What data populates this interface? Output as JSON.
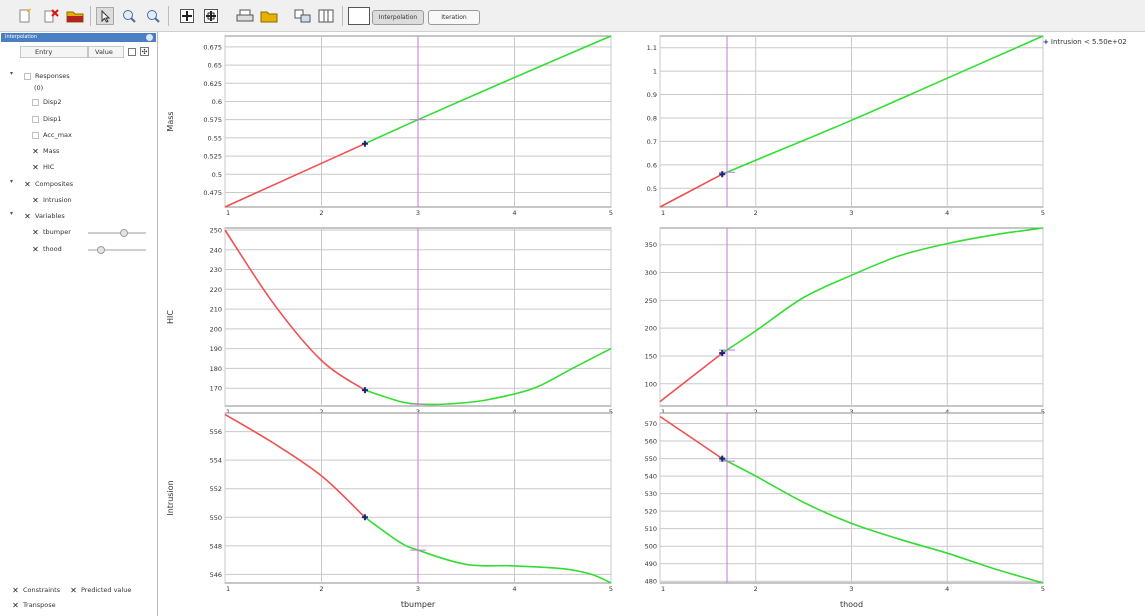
{
  "toolbar": {
    "buttons": [
      "new-file-icon",
      "delete-icon",
      "open-folder-icon",
      "select-cursor-icon",
      "zoom-in-icon",
      "zoom-out-icon",
      "fit-view-icon",
      "fit-all-icon",
      "print-icon",
      "print-folder-icon",
      "export-icon",
      "columns-icon"
    ],
    "mode_interpolation": "Interpolation",
    "mode_iteration": "Iteration"
  },
  "sidebar": {
    "title": "Interpolation",
    "col_entry": "Entry",
    "col_value": "Value",
    "responses_label": "Responses",
    "responses_count": "(0)",
    "items": [
      {
        "label": "Disp2",
        "checked": false
      },
      {
        "label": "Disp1",
        "checked": false
      },
      {
        "label": "Acc_max",
        "checked": false
      },
      {
        "label": "Mass",
        "checked": true
      },
      {
        "label": "HIC",
        "checked": true
      }
    ],
    "composites_label": "Composites",
    "composites_items": [
      {
        "label": "Intrusion",
        "checked": true
      }
    ],
    "variables_label": "Variables",
    "variables_items": [
      {
        "label": "tbumper",
        "checked": true,
        "slider": 0.62
      },
      {
        "label": "thood",
        "checked": true,
        "slider": 0.2
      }
    ],
    "opt_constraints": "Constraints",
    "opt_predicted": "Predicted value",
    "opt_transpose": "Transpose"
  },
  "legend": {
    "text": "Intrusion < 5.50e+02"
  },
  "colors": {
    "feasible": "#33dd33",
    "infeasible": "#f05050",
    "cursor": "#c27ad8",
    "point": "#1a237e"
  },
  "chart_data": [
    {
      "type": "line",
      "row": 0,
      "col": 0,
      "xlabel": "",
      "ylabel": "Mass",
      "xlim": [
        1,
        5
      ],
      "ylim": [
        0.455,
        0.69
      ],
      "xticks": [
        "1",
        "2",
        "3",
        "4",
        "5"
      ],
      "yticks": [
        0.475,
        0.5,
        0.525,
        0.55,
        0.575,
        0.6,
        0.625,
        0.65,
        0.675
      ],
      "ytick_labels": [
        "0.475",
        "0.5",
        "0.525",
        "0.55",
        "0.575",
        "0.6",
        "0.625",
        "0.65",
        "0.675"
      ],
      "x": [
        1,
        2.45,
        3,
        4,
        5
      ],
      "y": [
        0.455,
        0.542,
        0.575,
        0.633,
        0.69
      ],
      "split_x": 2.45,
      "cursor_x": 3,
      "point": [
        2.45,
        0.542
      ]
    },
    {
      "type": "line",
      "row": 0,
      "col": 1,
      "xlabel": "",
      "ylabel": "",
      "xlim": [
        1,
        5
      ],
      "ylim": [
        0.42,
        1.15
      ],
      "xticks": [
        "1",
        "2",
        "3",
        "4",
        "5"
      ],
      "yticks": [
        0.5,
        0.6,
        0.7,
        0.8,
        0.9,
        1.0,
        1.1
      ],
      "ytick_labels": [
        "0.5",
        "0.6",
        "0.7",
        "0.8",
        "0.9",
        "1",
        "1.1"
      ],
      "x": [
        1,
        1.65,
        2,
        3,
        4,
        5
      ],
      "y": [
        0.42,
        0.56,
        0.62,
        0.79,
        0.97,
        1.15
      ],
      "split_x": 1.65,
      "cursor_x": 1.7,
      "point": [
        1.65,
        0.56
      ]
    },
    {
      "type": "line",
      "row": 1,
      "col": 0,
      "xlabel": "",
      "ylabel": "HIC",
      "xlim": [
        1,
        5
      ],
      "ylim": [
        161,
        251
      ],
      "xticks": [
        "1",
        "2",
        "3",
        "4",
        "5"
      ],
      "yticks": [
        170,
        180,
        190,
        200,
        210,
        220,
        230,
        240,
        250
      ],
      "ytick_labels": [
        "170",
        "180",
        "190",
        "200",
        "210",
        "220",
        "230",
        "240",
        "250"
      ],
      "x": [
        1,
        1.5,
        2,
        2.45,
        2.8,
        3.0,
        3.3,
        3.7,
        4.2,
        4.6,
        5
      ],
      "y": [
        250,
        213,
        184,
        169,
        163.5,
        162,
        162,
        164,
        170,
        180,
        190
      ],
      "split_x": 2.45,
      "cursor_x": 3,
      "point": [
        2.45,
        169
      ]
    },
    {
      "type": "line",
      "row": 1,
      "col": 1,
      "xlabel": "",
      "ylabel": "",
      "xlim": [
        1,
        5
      ],
      "ylim": [
        60,
        380
      ],
      "xticks": [
        "1",
        "2",
        "3",
        "4",
        "5"
      ],
      "yticks": [
        100,
        150,
        200,
        250,
        300,
        350
      ],
      "ytick_labels": [
        "100",
        "150",
        "200",
        "250",
        "300",
        "350"
      ],
      "x": [
        1,
        1.65,
        2,
        2.5,
        3,
        3.5,
        4,
        4.5,
        5
      ],
      "y": [
        68,
        155,
        195,
        255,
        295,
        330,
        352,
        368,
        380
      ],
      "split_x": 1.65,
      "cursor_x": 1.7,
      "point": [
        1.65,
        155
      ]
    },
    {
      "type": "line",
      "row": 2,
      "col": 0,
      "xlabel": "tbumper",
      "ylabel": "Intrusion",
      "xlim": [
        1,
        5
      ],
      "ylim": [
        545.4,
        557.3
      ],
      "xticks": [
        "1",
        "2",
        "3",
        "4",
        "5"
      ],
      "yticks": [
        546,
        548,
        550,
        552,
        554,
        556
      ],
      "ytick_labels": [
        "546",
        "548",
        "550",
        "552",
        "554",
        "556"
      ],
      "x": [
        1,
        1.5,
        2,
        2.45,
        2.8,
        3.0,
        3.5,
        4.0,
        4.5,
        4.8,
        5
      ],
      "y": [
        557.2,
        555.2,
        552.9,
        550.0,
        548.3,
        547.7,
        546.7,
        546.6,
        546.4,
        546.0,
        545.4
      ],
      "split_x": 2.45,
      "cursor_x": 3,
      "point": [
        2.45,
        550.0
      ]
    },
    {
      "type": "line",
      "row": 2,
      "col": 1,
      "xlabel": "thood",
      "ylabel": "",
      "xlim": [
        1,
        5
      ],
      "ylim": [
        479,
        576
      ],
      "xticks": [
        "1",
        "2",
        "3",
        "4",
        "5"
      ],
      "yticks": [
        480,
        490,
        500,
        510,
        520,
        530,
        540,
        550,
        560,
        570
      ],
      "ytick_labels": [
        "480",
        "490",
        "500",
        "510",
        "520",
        "530",
        "540",
        "550",
        "560",
        "570"
      ],
      "x": [
        1,
        1.65,
        2,
        2.5,
        3,
        3.5,
        4,
        4.5,
        5
      ],
      "y": [
        574,
        550,
        540,
        525,
        513,
        504,
        496,
        487,
        479
      ],
      "split_x": 1.65,
      "cursor_x": 1.7,
      "point": [
        1.65,
        550
      ]
    }
  ]
}
